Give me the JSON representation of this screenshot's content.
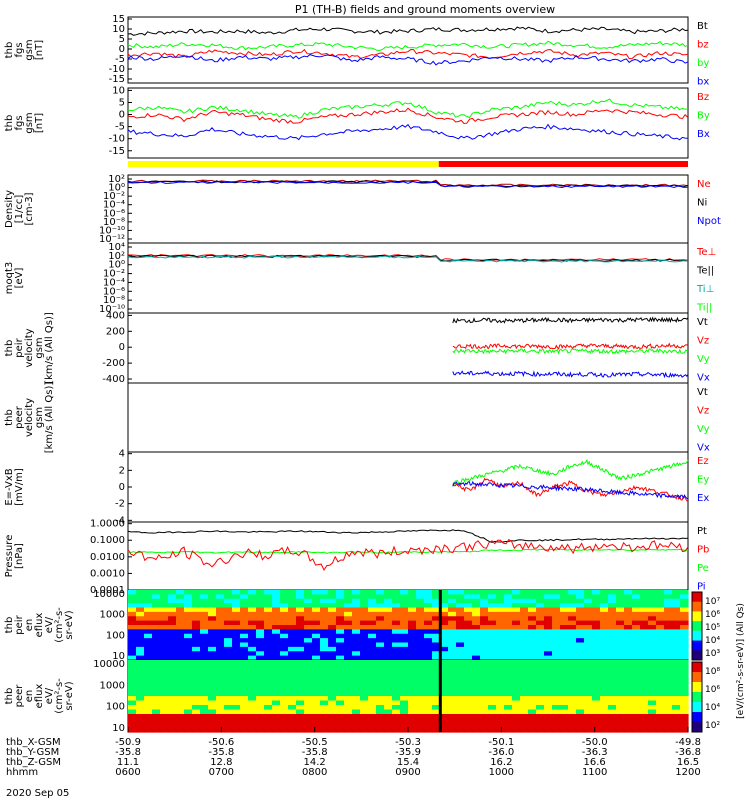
{
  "title": "P1 (TH-B) fields and ground moments overview",
  "date_label": "2020 Sep 05",
  "colors": {
    "black": "#000000",
    "red": "#ff0000",
    "green": "#00ff00",
    "blue": "#0000ff",
    "yellow": "#ffff00",
    "darkred": "#b00000",
    "teal": "#00aaaa",
    "purple": "#aa00aa"
  },
  "chart_data": [
    {
      "type": "line",
      "ylabel_lines": [
        "thb",
        "fgs",
        "gsm",
        "[nT]"
      ],
      "ylim": [
        -17,
        16
      ],
      "yticks": [
        "15",
        "10",
        "5",
        "0",
        "-5",
        "-10",
        "-15"
      ],
      "ytick_values": [
        15,
        10,
        5,
        0,
        -5,
        -10,
        -15
      ],
      "legend": [
        {
          "label": "Bt",
          "color": "#000000"
        },
        {
          "label": "bz",
          "color": "#ff0000"
        },
        {
          "label": "by",
          "color": "#00ff00"
        },
        {
          "label": "bx",
          "color": "#0000ff"
        }
      ],
      "series": [
        {
          "color": "#000000",
          "values": [
            7.5,
            8,
            9,
            8.5,
            9,
            8,
            9.5,
            10,
            9,
            8.5,
            9,
            10,
            9.5,
            10,
            10.5,
            9,
            9.5,
            10,
            8.5,
            9,
            10
          ]
        },
        {
          "color": "#00ff00",
          "values": [
            2,
            1,
            2.5,
            2,
            0.5,
            1,
            2,
            2.5,
            1,
            0,
            1,
            2,
            2.5,
            1,
            2,
            3,
            2,
            1,
            2,
            3,
            2
          ]
        },
        {
          "color": "#ff0000",
          "values": [
            -3,
            -2,
            -4,
            -1,
            -2,
            -3,
            -1,
            -2,
            -4,
            -3,
            -1,
            -2,
            -3,
            -4,
            -2,
            -1,
            -3,
            -2,
            -4,
            -2,
            -3
          ]
        },
        {
          "color": "#0000ff",
          "values": [
            -4,
            -5,
            -3,
            -6,
            -4,
            -5,
            -4,
            -3,
            -6,
            -4,
            -5,
            -7,
            -6,
            -4,
            -5,
            -6,
            -4,
            -5,
            -6,
            -5,
            -7
          ]
        }
      ]
    },
    {
      "type": "line",
      "ylabel_lines": [
        "thb",
        "fgs",
        "gsm",
        "[nT]"
      ],
      "ylim": [
        -18,
        11
      ],
      "yticks": [
        "10",
        "5",
        "0",
        "-5",
        "-10",
        "-15"
      ],
      "ytick_values": [
        10,
        5,
        0,
        -5,
        -10,
        -15
      ],
      "legend": [
        {
          "label": "Bz",
          "color": "#ff0000"
        },
        {
          "label": "By",
          "color": "#00ff00"
        },
        {
          "label": "Bx",
          "color": "#0000ff"
        }
      ],
      "series": [
        {
          "color": "#00ff00",
          "values": [
            2,
            3,
            1,
            3,
            2,
            0,
            -1,
            2,
            3,
            4,
            5,
            1,
            -1,
            2,
            3,
            5,
            4,
            6,
            4,
            3,
            2
          ]
        },
        {
          "color": "#ff0000",
          "values": [
            -1,
            0,
            -2,
            1,
            0,
            -2,
            -3,
            -1,
            0,
            1,
            2,
            -1,
            -3,
            -1,
            0,
            1,
            0,
            2,
            1,
            0,
            -1
          ]
        },
        {
          "color": "#0000ff",
          "values": [
            -7,
            -8,
            -9,
            -6,
            -8,
            -9,
            -10,
            -8,
            -7,
            -6,
            -5,
            -7,
            -10,
            -8,
            -6,
            -5,
            -6,
            -7,
            -8,
            -9,
            -10
          ]
        }
      ]
    },
    {
      "type": "line",
      "ylabel_lines": [
        "Density",
        "[1/cc]",
        "[cm-3]"
      ],
      "yticks": [
        "10²",
        "10⁰",
        "10⁻²",
        "10⁻⁴",
        "10⁻⁶",
        "10⁻⁸",
        "10⁻¹⁰",
        "10⁻¹²"
      ],
      "legend": [
        {
          "label": "Ne",
          "color": "#ff0000"
        },
        {
          "label": "Ni",
          "color": "#000000"
        },
        {
          "label": "Npot",
          "color": "#0000ff"
        }
      ]
    },
    {
      "type": "line",
      "ylabel_lines": [
        "moqt3",
        "[eV]"
      ],
      "yticks": [
        "10⁴",
        "10²",
        "10⁰",
        "10⁻²",
        "10⁻⁴",
        "10⁻⁶",
        "10⁻⁸",
        "10⁻¹⁰"
      ],
      "legend": [
        {
          "label": "Te⊥",
          "color": "#ff0000"
        },
        {
          "label": "Te||",
          "color": "#000000"
        },
        {
          "label": "Ti⊥",
          "color": "#00aaaa"
        },
        {
          "label": "Ti||",
          "color": "#00ff00"
        }
      ]
    },
    {
      "type": "line",
      "ylabel_lines": [
        "thb",
        "peir",
        "velocity",
        "gsm",
        "[km/s (All Qs)]"
      ],
      "ylim": [
        -450,
        430
      ],
      "yticks": [
        "400",
        "200",
        "0",
        "-200",
        "-400"
      ],
      "ytick_values": [
        400,
        200,
        0,
        -200,
        -400
      ],
      "x_start": 0.58,
      "legend": [
        {
          "label": "Vt",
          "color": "#000000"
        },
        {
          "label": "Vz",
          "color": "#ff0000"
        },
        {
          "label": "Vy",
          "color": "#00ff00"
        },
        {
          "label": "Vx",
          "color": "#0000ff"
        }
      ],
      "series": [
        {
          "color": "#000000",
          "values": [
            330,
            335,
            340,
            330,
            335,
            340,
            345,
            335,
            340,
            345,
            340,
            345,
            350,
            340,
            345
          ]
        },
        {
          "color": "#ff0000",
          "values": [
            10,
            15,
            5,
            20,
            10,
            15,
            5,
            10,
            20,
            15,
            10,
            5,
            15,
            20,
            10
          ]
        },
        {
          "color": "#00ff00",
          "values": [
            -50,
            -45,
            -55,
            -50,
            -45,
            -50,
            -55,
            -50,
            -45,
            -50,
            -55,
            -50,
            -45,
            -50,
            -55
          ]
        },
        {
          "color": "#0000ff",
          "values": [
            -320,
            -330,
            -325,
            -335,
            -330,
            -340,
            -335,
            -345,
            -340,
            -350,
            -345,
            -340,
            -345,
            -350,
            -355
          ]
        }
      ]
    },
    {
      "type": "line",
      "ylabel_lines": [
        "thb",
        "peer",
        "velocity",
        "gsm",
        "[km/s (All Qs)]"
      ],
      "legend": [
        {
          "label": "Vt",
          "color": "#000000"
        },
        {
          "label": "Vz",
          "color": "#ff0000"
        },
        {
          "label": "Vy",
          "color": "#00ff00"
        },
        {
          "label": "Vx",
          "color": "#0000ff"
        }
      ]
    },
    {
      "type": "line",
      "ylabel_lines": [
        "E=-VxB",
        "[mV/m]"
      ],
      "ylim": [
        -4.2,
        4.2
      ],
      "yticks": [
        "4",
        "2",
        "0",
        "-2",
        "-4"
      ],
      "ytick_values": [
        4,
        2,
        0,
        -2,
        -4
      ],
      "x_start": 0.58,
      "legend": [
        {
          "label": "Ez",
          "color": "#ff0000"
        },
        {
          "label": "Ey",
          "color": "#00ff00"
        },
        {
          "label": "Ex",
          "color": "#0000ff"
        }
      ],
      "series": [
        {
          "color": "#00ff00",
          "values": [
            0.5,
            1,
            1.5,
            2,
            2.5,
            2,
            1.5,
            2.5,
            3,
            2,
            1,
            1.5,
            2,
            2.5,
            3
          ]
        },
        {
          "color": "#ff0000",
          "values": [
            0.5,
            -0.5,
            1,
            0,
            0.5,
            -1,
            0,
            0.5,
            -0.5,
            -1,
            -0.5,
            0,
            -0.5,
            -1,
            -1.5
          ]
        },
        {
          "color": "#0000ff",
          "values": [
            0.3,
            0.4,
            0.3,
            0.2,
            0.1,
            0,
            -0.1,
            -0.2,
            -0.3,
            -0.5,
            -0.7,
            -0.8,
            -1,
            -1.1,
            -1.2
          ]
        }
      ]
    },
    {
      "type": "line",
      "ylabel_lines": [
        "Pressure",
        "[nPa]"
      ],
      "ylim_log": [
        -4,
        0.1
      ],
      "yticks": [
        "1.0000",
        "0.1000",
        "0.0100",
        "0.0010",
        "0.0001"
      ],
      "ytick_values": [
        0,
        -1,
        -2,
        -3,
        -4
      ],
      "legend": [
        {
          "label": "Pt",
          "color": "#000000"
        },
        {
          "label": "Pb",
          "color": "#ff0000"
        },
        {
          "label": "Pe",
          "color": "#00ff00"
        },
        {
          "label": "Pi",
          "color": "#0000ff"
        }
      ],
      "series": [
        {
          "color": "#000000",
          "values": [
            -0.5,
            -0.55,
            -0.5,
            -0.45,
            -0.5,
            -0.5,
            -0.45,
            -0.5,
            -0.55,
            -0.5,
            -0.45,
            -0.4,
            -0.4,
            -1.1,
            -1.0,
            -1.0,
            -0.95,
            -0.95,
            -0.9,
            -0.9,
            -0.9
          ]
        },
        {
          "color": "#00ff00",
          "values": [
            -1.7,
            -1.75,
            -1.7,
            -1.75,
            -1.7,
            -1.75,
            -1.7,
            -1.75,
            -1.7,
            -1.75,
            -1.7,
            -1.7,
            -1.7,
            -1.6,
            -1.6,
            -1.55,
            -1.6,
            -1.55,
            -1.6,
            -1.55,
            -1.6
          ]
        },
        {
          "color": "#ff0000",
          "values": [
            -1.6,
            -2.2,
            -1.7,
            -2.5,
            -1.8,
            -1.9,
            -1.6,
            -2.6,
            -1.7,
            -1.8,
            -1.6,
            -1.5,
            -1.4,
            -1.2,
            -1.3,
            -1.4,
            -1.5,
            -1.3,
            -1.4,
            -1.3,
            -1.4
          ]
        }
      ]
    },
    {
      "type": "heatmap",
      "ylabel_lines": [
        "thb",
        "peir",
        "en",
        "eflux",
        "eV/",
        "(cm²-s-",
        "sr-eV)"
      ],
      "yticks": [
        "10000",
        "1000",
        "100",
        "10"
      ]
    },
    {
      "type": "heatmap",
      "ylabel_lines": [
        "thb",
        "peer",
        "en",
        "eflux",
        "eV/",
        "(cm²-s-",
        "sr-eV)"
      ],
      "yticks": [
        "10000",
        "1000",
        "100",
        "10"
      ]
    }
  ],
  "colorbar_top": {
    "ticks": [
      "10⁷",
      "10⁶",
      "10⁵",
      "10⁴",
      "10³"
    ]
  },
  "colorbar_bottom": {
    "ticks": [
      "10⁸",
      "10⁶",
      "10⁴",
      "10²"
    ]
  },
  "colorbar_label": "[eV/(cm²-s-sr-eV)] (All Qs)",
  "orbit_labels": [
    "thb_X-GSM",
    "thb_Y-GSM",
    "thb_Z-GSM",
    "hhmm"
  ],
  "orbit_rows": [
    [
      "-50.9",
      "-50.6",
      "-50.5",
      "-50.3",
      "-50.1",
      "-50.0",
      "-49.8"
    ],
    [
      "-35.8",
      "-35.8",
      "-35.8",
      "-35.9",
      "-36.0",
      "-36.3",
      "-36.8"
    ],
    [
      "11.1",
      "12.8",
      "14.2",
      "15.4",
      "16.2",
      "16.6",
      "16.5"
    ],
    [
      "0600",
      "0700",
      "0800",
      "0900",
      "1000",
      "1100",
      "1200"
    ]
  ]
}
